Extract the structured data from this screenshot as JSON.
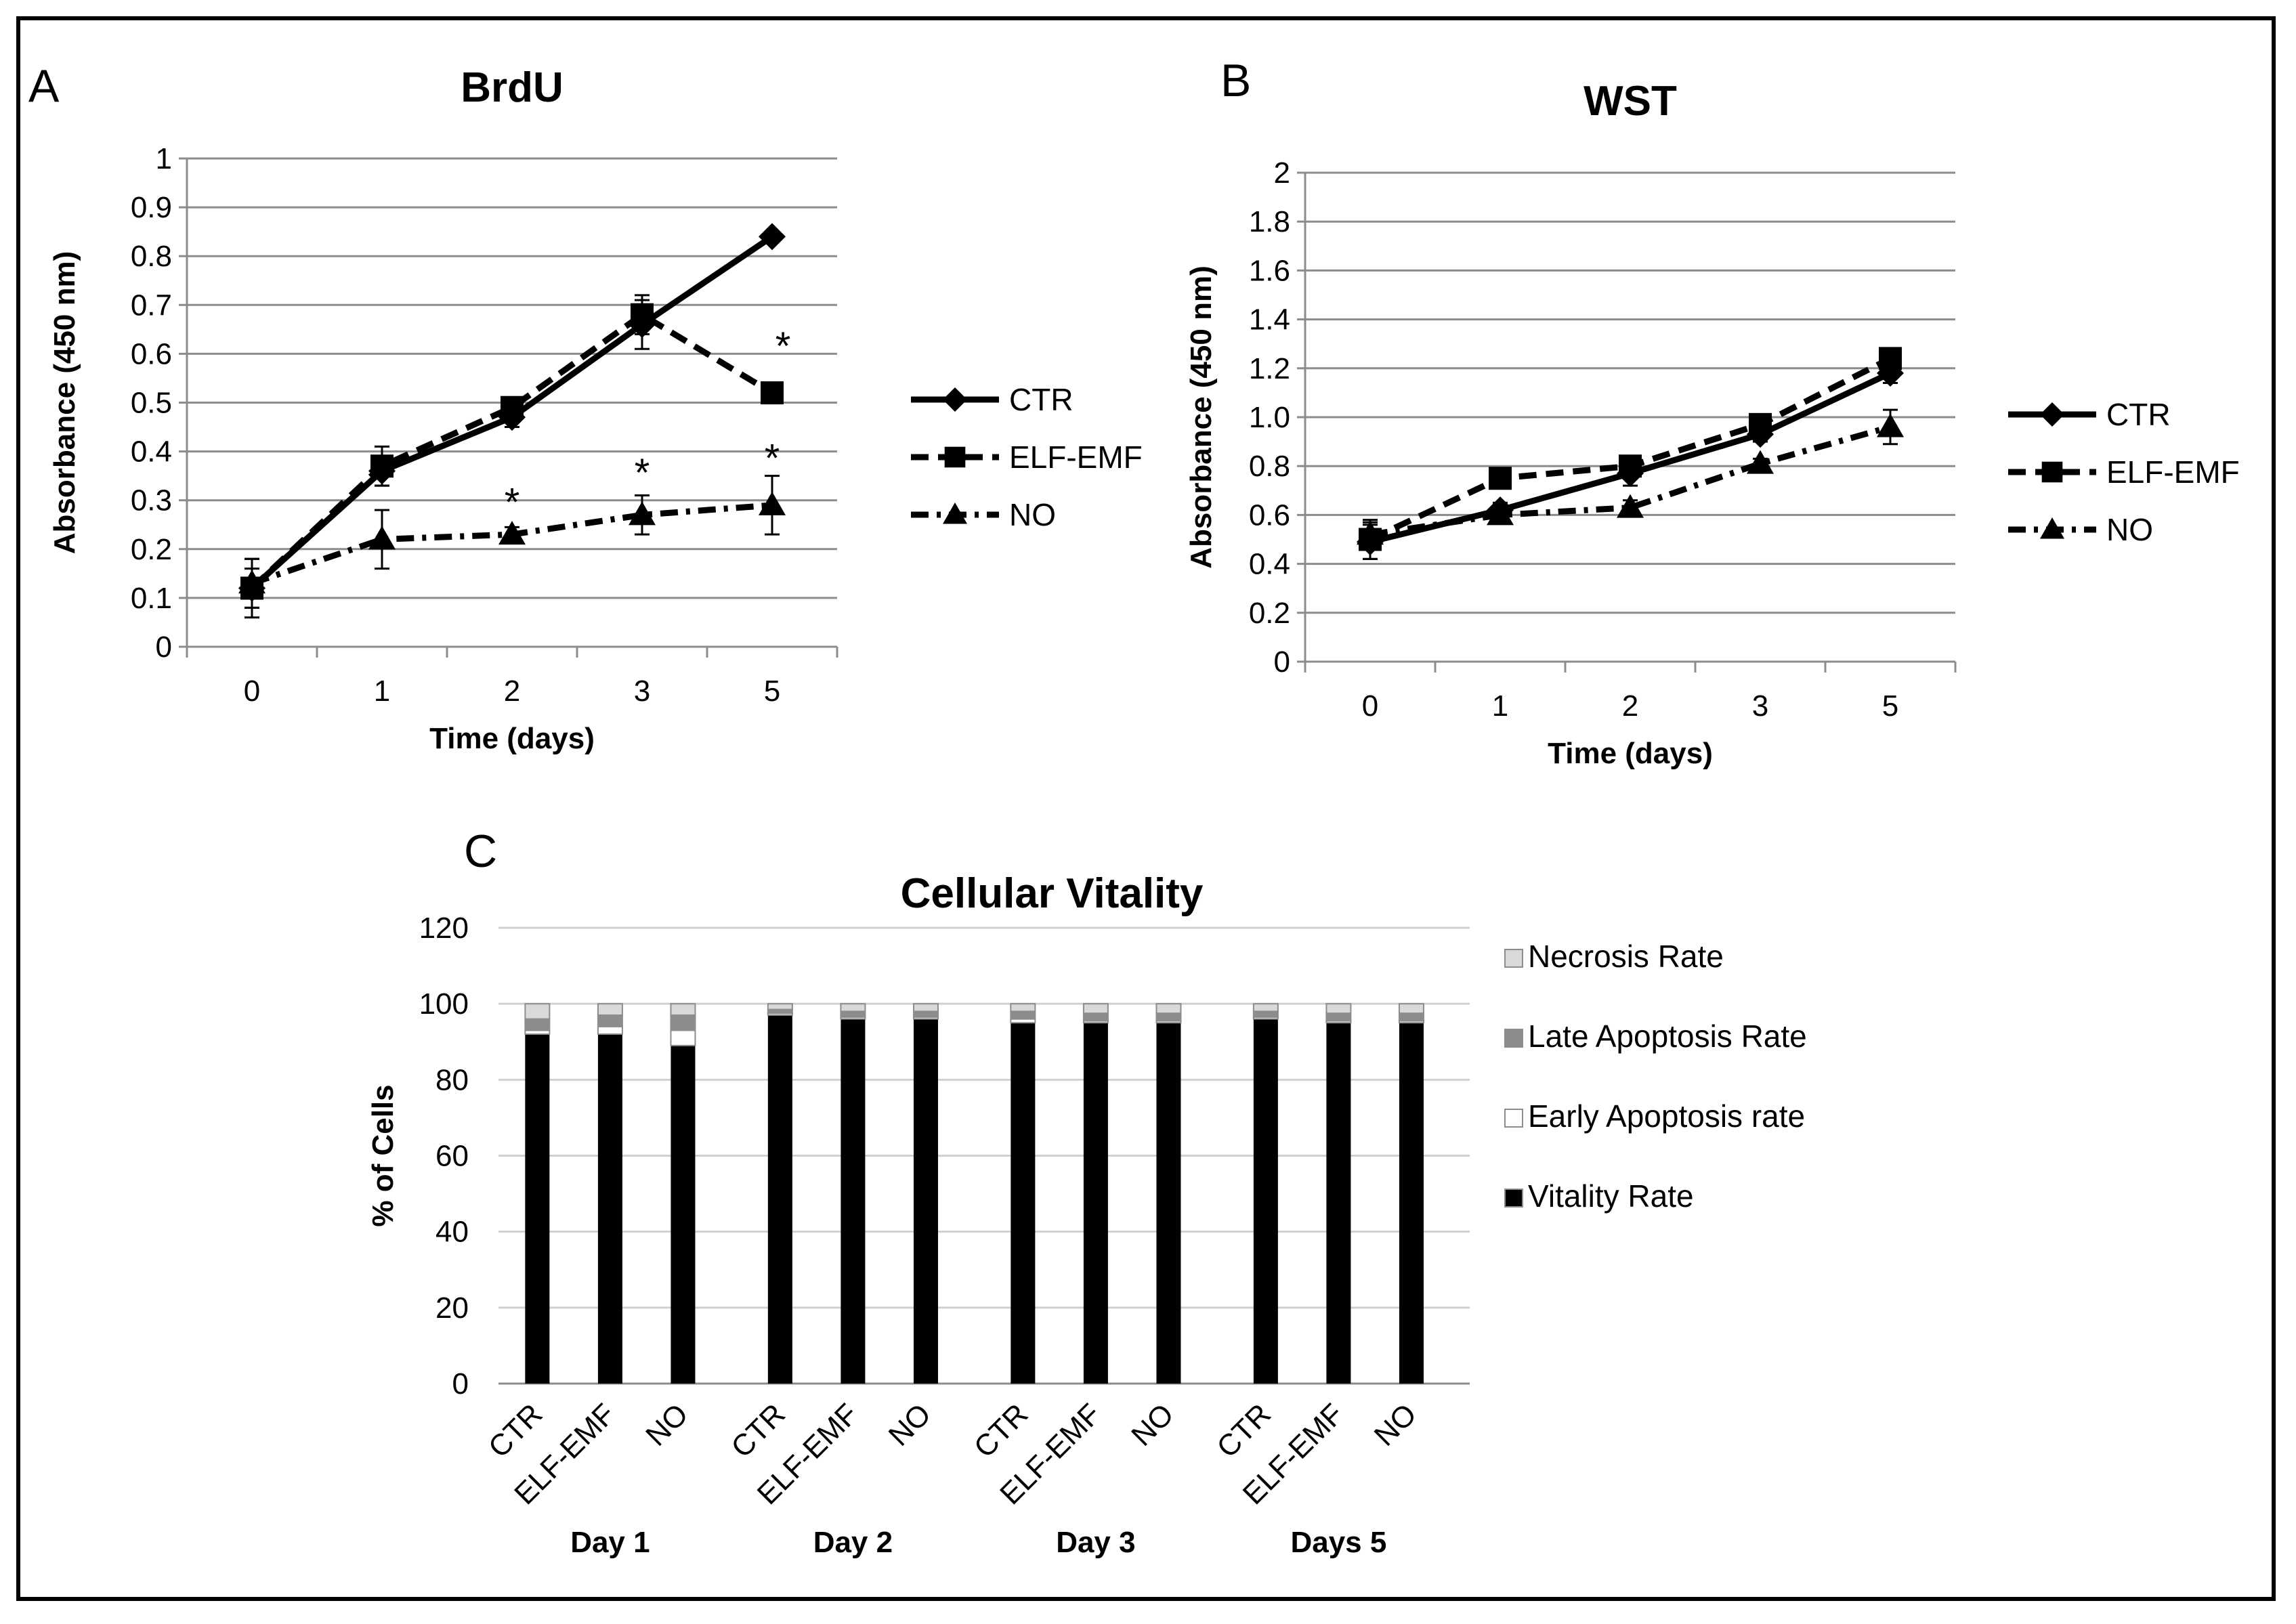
{
  "chart_data": [
    {
      "id": "A",
      "type": "line",
      "panel_label": "A",
      "title": "BrdU",
      "xlabel": "Time (days)",
      "ylabel": "Absorbance  (450 nm)",
      "categories": [
        "0",
        "1",
        "2",
        "3",
        "5"
      ],
      "ylim": [
        0,
        1
      ],
      "yticks": [
        0,
        0.1,
        0.2,
        0.3,
        0.4,
        0.5,
        0.6,
        0.7,
        0.8,
        0.9,
        1
      ],
      "ytick_labels": [
        "0",
        "0.1",
        "0.2",
        "0.3",
        "0.4",
        "0.5",
        "0.6",
        "0.7",
        "0.8",
        "0.9",
        "1"
      ],
      "series": [
        {
          "name": "CTR",
          "marker": "diamond",
          "dash": "solid",
          "values": [
            0.12,
            0.36,
            0.47,
            0.66,
            0.84
          ],
          "errors": [
            0.04,
            0.03,
            0.02,
            0.05,
            0.01
          ]
        },
        {
          "name": "ELF-EMF",
          "marker": "square",
          "dash": "dash",
          "values": [
            0.12,
            0.37,
            0.49,
            0.68,
            0.52
          ],
          "errors": [
            0.06,
            0.04,
            0.02,
            0.04,
            0.02
          ]
        },
        {
          "name": "NO",
          "marker": "triangle",
          "dash": "dashdot",
          "values": [
            0.13,
            0.22,
            0.23,
            0.27,
            0.29
          ],
          "errors": [
            0.05,
            0.06,
            0.015,
            0.04,
            0.06
          ]
        }
      ],
      "annotations": [
        {
          "text": "*",
          "category": "2",
          "value": 0.31
        },
        {
          "text": "*",
          "category": "3",
          "value": 0.37
        },
        {
          "text": "*",
          "category": "5",
          "value": 0.4
        },
        {
          "text": "*",
          "category": "5",
          "value": 0.63
        }
      ]
    },
    {
      "id": "B",
      "type": "line",
      "panel_label": "B",
      "title": "WST",
      "xlabel": "Time (days)",
      "ylabel": "Absorbance  (450 nm)",
      "categories": [
        "0",
        "1",
        "2",
        "3",
        "5"
      ],
      "ylim": [
        0,
        2
      ],
      "yticks": [
        0,
        0.2,
        0.4,
        0.6,
        0.8,
        1.0,
        1.2,
        1.4,
        1.6,
        1.8,
        2
      ],
      "ytick_labels": [
        "0",
        "0.2",
        "0.4",
        "0.6",
        "0.8",
        "1.0",
        "1.2",
        "1.4",
        "1.6",
        "1.8",
        "2"
      ],
      "series": [
        {
          "name": "CTR",
          "marker": "diamond",
          "dash": "solid",
          "values": [
            0.49,
            0.62,
            0.77,
            0.93,
            1.18
          ],
          "errors": [
            0.07,
            0.03,
            0.05,
            0.03,
            0.04
          ]
        },
        {
          "name": "ELF-EMF",
          "marker": "square",
          "dash": "dash",
          "values": [
            0.5,
            0.75,
            0.8,
            0.97,
            1.24
          ],
          "errors": [
            0.08,
            0.03,
            0.03,
            0.03,
            0.04
          ]
        },
        {
          "name": "NO",
          "marker": "triangle",
          "dash": "dashdot",
          "values": [
            0.52,
            0.6,
            0.63,
            0.81,
            0.96
          ],
          "errors": [
            0.05,
            0.02,
            0.03,
            0.02,
            0.07
          ]
        }
      ],
      "annotations": []
    },
    {
      "id": "C",
      "type": "bar",
      "stacked": true,
      "panel_label": "C",
      "title": "Cellular Vitality",
      "xlabel": "",
      "ylabel": "% of Cells",
      "ylim": [
        0,
        120
      ],
      "yticks": [
        0,
        20,
        40,
        60,
        80,
        100,
        120
      ],
      "ytick_labels": [
        "0",
        "20",
        "40",
        "60",
        "80",
        "100",
        "120"
      ],
      "groups": [
        "Day 1",
        "Day 2",
        "Day 3",
        "Days 5"
      ],
      "categories": [
        "CTR",
        "ELF-EMF",
        "NO",
        "CTR",
        "ELF-EMF",
        "NO",
        "CTR",
        "ELF-EMF",
        "NO",
        "CTR",
        "ELF-EMF",
        "NO"
      ],
      "series": [
        {
          "name": "Vitality Rate",
          "color": "#000000",
          "values": [
            92,
            92,
            89,
            97,
            96,
            96,
            95,
            95,
            95,
            96,
            95,
            95
          ]
        },
        {
          "name": "Early Apoptosis rate",
          "color": "#ffffff",
          "values": [
            1,
            2,
            4,
            0.5,
            0.5,
            0.5,
            1,
            0.5,
            0.5,
            0.5,
            0.5,
            0.5
          ]
        },
        {
          "name": "Late Apoptosis Rate",
          "color": "#8c8c8c",
          "values": [
            3,
            3,
            4,
            1,
            1.5,
            1.5,
            2,
            2,
            2,
            1.5,
            2,
            2
          ]
        },
        {
          "name": "Necrosis Rate",
          "color": "#d9d9d9",
          "values": [
            4,
            3,
            3,
            1.5,
            2,
            2,
            2,
            2.5,
            2.5,
            2,
            2.5,
            2.5
          ]
        }
      ],
      "legend_order": [
        "Necrosis Rate",
        "Late Apoptosis Rate",
        "Early Apoptosis rate",
        "Vitality Rate"
      ]
    }
  ]
}
